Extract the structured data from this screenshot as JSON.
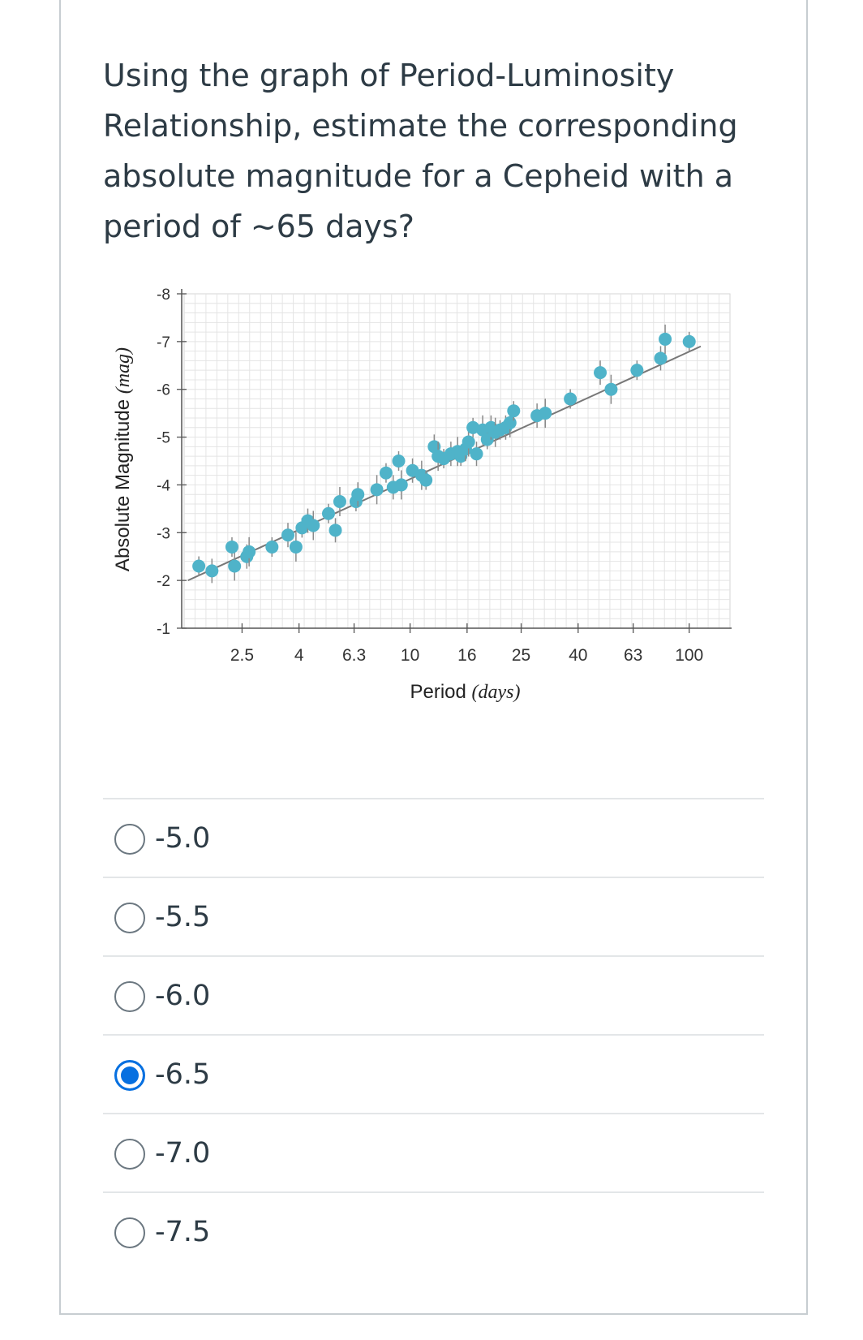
{
  "question": {
    "line1": "Using the graph of Period-Luminosity",
    "line2": "Relationship, estimate the corresponding",
    "line3": "absolute magnitude for a Cepheid with a",
    "line4": "period of ~65 days?"
  },
  "chart_data": {
    "type": "scatter",
    "title": "",
    "xlabel_main": "Period",
    "xlabel_unit": "(days)",
    "ylabel_main": "Absolute Magnitude",
    "ylabel_unit": "(mag)",
    "x_scale": "log",
    "x_ticks": [
      2.5,
      4,
      6.3,
      10,
      16,
      25,
      40,
      63,
      100
    ],
    "x_tick_labels": [
      "2.5",
      "4",
      "6.3",
      "10",
      "16",
      "25",
      "40",
      "63",
      "100"
    ],
    "y_ticks": [
      -8,
      -7,
      -6,
      -5,
      -4,
      -3,
      -2,
      -1
    ],
    "y_tick_labels": [
      "-8",
      "-7",
      "-6",
      "-5",
      "-4",
      "-3",
      "-2",
      "-1"
    ],
    "y_inverted": true,
    "xlim": [
      1.55,
      140
    ],
    "ylim": [
      -1,
      -8
    ],
    "grid": true,
    "point_color": "#4fb3c9",
    "fit_line_color": "#777777",
    "fit_line": {
      "x": [
        1.6,
        110
      ],
      "y": [
        -2.0,
        -6.9
      ]
    },
    "series": [
      {
        "points": [
          {
            "x": 1.75,
            "y": -2.3
          },
          {
            "x": 1.95,
            "y": -2.2
          },
          {
            "x": 2.35,
            "y": -2.3
          },
          {
            "x": 2.3,
            "y": -2.7
          },
          {
            "x": 2.6,
            "y": -2.5
          },
          {
            "x": 2.65,
            "y": -2.6
          },
          {
            "x": 3.2,
            "y": -2.7
          },
          {
            "x": 3.65,
            "y": -2.95
          },
          {
            "x": 3.9,
            "y": -2.7
          },
          {
            "x": 4.1,
            "y": -3.1
          },
          {
            "x": 4.3,
            "y": -3.25
          },
          {
            "x": 4.5,
            "y": -3.15
          },
          {
            "x": 5.1,
            "y": -3.4
          },
          {
            "x": 5.4,
            "y": -3.05
          },
          {
            "x": 5.6,
            "y": -3.65
          },
          {
            "x": 6.4,
            "y": -3.65
          },
          {
            "x": 6.5,
            "y": -3.8
          },
          {
            "x": 7.6,
            "y": -3.9
          },
          {
            "x": 8.2,
            "y": -4.25
          },
          {
            "x": 8.7,
            "y": -3.95
          },
          {
            "x": 9.3,
            "y": -4.0
          },
          {
            "x": 9.1,
            "y": -4.5
          },
          {
            "x": 10.2,
            "y": -4.3
          },
          {
            "x": 11.0,
            "y": -4.2
          },
          {
            "x": 11.4,
            "y": -4.1
          },
          {
            "x": 12.2,
            "y": -4.8
          },
          {
            "x": 12.6,
            "y": -4.6
          },
          {
            "x": 13.2,
            "y": -4.55
          },
          {
            "x": 14.0,
            "y": -4.65
          },
          {
            "x": 14.8,
            "y": -4.7
          },
          {
            "x": 15.2,
            "y": -4.6
          },
          {
            "x": 15.8,
            "y": -4.75
          },
          {
            "x": 16.2,
            "y": -4.9
          },
          {
            "x": 16.8,
            "y": -5.2
          },
          {
            "x": 17.3,
            "y": -4.65
          },
          {
            "x": 18.2,
            "y": -5.15
          },
          {
            "x": 18.9,
            "y": -4.95
          },
          {
            "x": 19.5,
            "y": -5.2
          },
          {
            "x": 20.2,
            "y": -5.1
          },
          {
            "x": 21.0,
            "y": -5.15
          },
          {
            "x": 22.0,
            "y": -5.2
          },
          {
            "x": 22.8,
            "y": -5.3
          },
          {
            "x": 23.5,
            "y": -5.55
          },
          {
            "x": 28.5,
            "y": -5.45
          },
          {
            "x": 30.5,
            "y": -5.5
          },
          {
            "x": 37.5,
            "y": -5.8
          },
          {
            "x": 48.0,
            "y": -6.35
          },
          {
            "x": 52.5,
            "y": -6.0
          },
          {
            "x": 65.0,
            "y": -6.4
          },
          {
            "x": 79.0,
            "y": -6.65
          },
          {
            "x": 82.0,
            "y": -7.05
          },
          {
            "x": 100.0,
            "y": -7.0
          }
        ]
      }
    ]
  },
  "answers": [
    {
      "label": "-5.0",
      "selected": false
    },
    {
      "label": "-5.5",
      "selected": false
    },
    {
      "label": "-6.0",
      "selected": false
    },
    {
      "label": "-6.5",
      "selected": true
    },
    {
      "label": "-7.0",
      "selected": false
    },
    {
      "label": "-7.5",
      "selected": false
    }
  ]
}
